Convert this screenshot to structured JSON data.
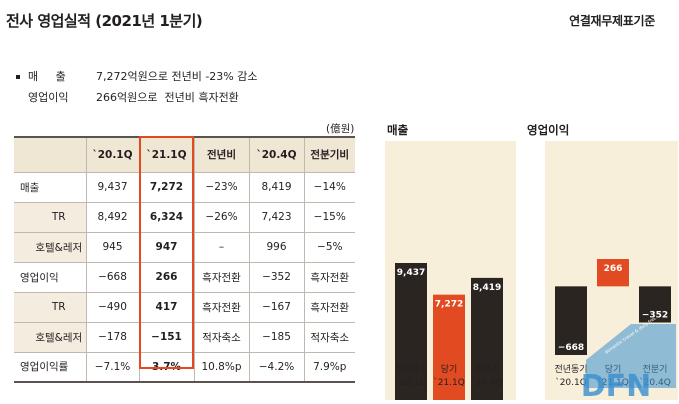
{
  "title": "전사 영업실적 (2021년 1분기)",
  "basis": "연결재무제표기준",
  "summary": [
    {
      "label": "매     출",
      "text": "7,272억원으로 전년비 -23% 감소"
    },
    {
      "label": "영업이익",
      "text": "266억원으로  전년비 흑자전환"
    }
  ],
  "table": {
    "unit": "(億원)",
    "headers": [
      "",
      "`20.1Q",
      "`21.1Q",
      "전년비",
      "`20.4Q",
      "전분기비"
    ],
    "rows": [
      {
        "label": "매출",
        "sub": false,
        "cells": [
          "9,437",
          "7,272",
          "−23%",
          "8,419",
          "−14%"
        ]
      },
      {
        "label": "TR",
        "sub": true,
        "cells": [
          "8,492",
          "6,324",
          "−26%",
          "7,423",
          "−15%"
        ]
      },
      {
        "label": "호텔&레저",
        "sub": true,
        "cells": [
          "945",
          "947",
          "–",
          "996",
          "−5%"
        ]
      },
      {
        "label": "영업이익",
        "sub": false,
        "cells": [
          "−668",
          "266",
          "흑자전환",
          "−352",
          "흑자전환"
        ]
      },
      {
        "label": "TR",
        "sub": true,
        "cells": [
          "−490",
          "417",
          "흑자전환",
          "−167",
          "흑자전환"
        ]
      },
      {
        "label": "호텔&레저",
        "sub": true,
        "cells": [
          "−178",
          "−151",
          "적자축소",
          "−185",
          "적자축소"
        ]
      },
      {
        "label": "영업이익률",
        "sub": false,
        "cells": [
          "−7.1%",
          "3.7%",
          "10.8%p",
          "−4.2%",
          "7.9%p"
        ]
      }
    ]
  },
  "colors": {
    "dark": "#2b2522",
    "accent": "#e24b21",
    "panel": "#f7efd9",
    "header": "#efe6d4",
    "watermark": "#3a8fd0"
  },
  "chart_data": [
    {
      "type": "bar",
      "title": "매출",
      "categories": [
        "전년동기\n`20.1Q",
        "당기\n`21.1Q",
        "전분기\n`20.4Q"
      ],
      "values": [
        9437,
        7272,
        8419
      ],
      "labels": [
        "9,437",
        "7,272",
        "8,419"
      ],
      "highlight_index": 1,
      "ylim": [
        0,
        9437
      ]
    },
    {
      "type": "bar",
      "title": "영업이익",
      "categories": [
        "전년동기\n`20.1Q",
        "당기\n`21.1Q",
        "전분기\n`20.4Q"
      ],
      "values": [
        -668,
        266,
        -352
      ],
      "labels": [
        "−668",
        "266",
        "−352"
      ],
      "highlight_index": 1,
      "ylim": [
        -668,
        266
      ]
    }
  ],
  "watermark": {
    "text": "DFN",
    "subtitle": "domestic travel & duty free news"
  }
}
